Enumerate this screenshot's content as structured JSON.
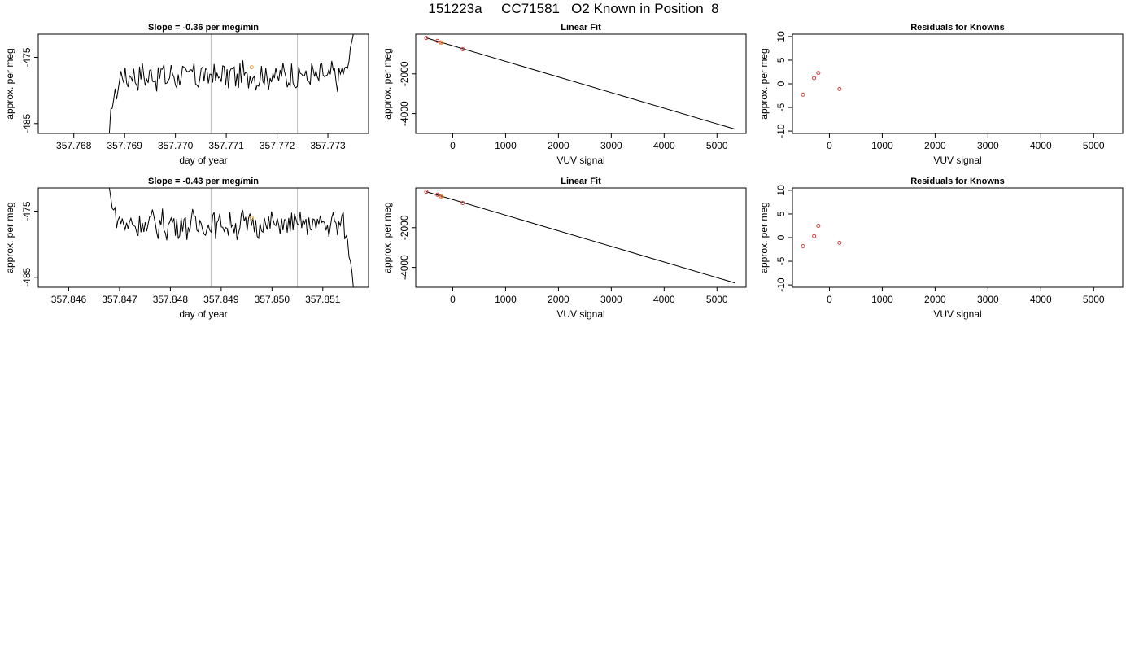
{
  "page": {
    "title": "151223a     CC71581   O2 Known in Position  8"
  },
  "colors": {
    "line": "#000000",
    "frame": "#000000",
    "vline": "#bebebe",
    "point_red": "#d43b3b",
    "point_orange": "#f2a13a"
  },
  "chart_data": [
    {
      "id": "p1",
      "type": "line",
      "title": "Slope =  -0.36  per meg/min",
      "xlabel": "day of year",
      "ylabel": "approx. per meg",
      "xlim": [
        357.7673,
        357.7738
      ],
      "ylim": [
        -486.5,
        -471.5
      ],
      "xticks": [
        357.768,
        357.769,
        357.77,
        357.771,
        357.772,
        357.773
      ],
      "xtick_labels": [
        "357.768",
        "357.769",
        "357.770",
        "357.771",
        "357.772",
        "357.773"
      ],
      "yticks": [
        -485,
        -475
      ],
      "ytick_labels": [
        "-485",
        "-475"
      ],
      "vlines": [
        357.7707,
        357.7724
      ],
      "t_start": 357.7687,
      "t_end": 357.7735,
      "level": -477.8,
      "start_value": -486.5,
      "end_value": -471.5,
      "marker": {
        "x": 357.7715,
        "y": -476.5
      }
    },
    {
      "id": "p2",
      "type": "scatter",
      "title": "Linear Fit",
      "xlabel": "VUV signal",
      "ylabel": "approx. per meg",
      "xlim": [
        -700,
        5550
      ],
      "ylim": [
        -5000,
        0
      ],
      "xticks": [
        0,
        1000,
        2000,
        3000,
        4000,
        5000
      ],
      "xtick_labels": [
        "0",
        "1000",
        "2000",
        "3000",
        "4000",
        "5000"
      ],
      "yticks": [
        -4000,
        -2000
      ],
      "ytick_labels": [
        "-4000",
        "-2000"
      ],
      "fit_line": [
        [
          -500,
          -190
        ],
        [
          5350,
          -4790
        ]
      ],
      "points": [
        {
          "x": -500,
          "y": -190,
          "color": "red"
        },
        {
          "x": -290,
          "y": -340,
          "color": "red"
        },
        {
          "x": -230,
          "y": -420,
          "color": "red"
        },
        {
          "x": -210,
          "y": -430,
          "color": "orange"
        },
        {
          "x": 190,
          "y": -760,
          "color": "red"
        }
      ]
    },
    {
      "id": "p3",
      "type": "scatter",
      "title": "Residuals for Knowns",
      "xlabel": "VUV signal",
      "ylabel": "approx. per meg",
      "xlim": [
        -700,
        5550
      ],
      "ylim": [
        -10.5,
        10.5
      ],
      "xticks": [
        0,
        1000,
        2000,
        3000,
        4000,
        5000
      ],
      "xtick_labels": [
        "0",
        "1000",
        "2000",
        "3000",
        "4000",
        "5000"
      ],
      "yticks": [
        -10,
        -5,
        0,
        5,
        10
      ],
      "ytick_labels": [
        "-10",
        "-5",
        "0",
        "5",
        "10"
      ],
      "points": [
        {
          "x": -500,
          "y": -2.3,
          "color": "red"
        },
        {
          "x": -290,
          "y": 1.2,
          "color": "red"
        },
        {
          "x": -210,
          "y": 2.3,
          "color": "red"
        },
        {
          "x": 190,
          "y": -1.1,
          "color": "red"
        }
      ]
    },
    {
      "id": "p4",
      "type": "line",
      "title": "Slope =  -0.43  per meg/min",
      "xlabel": "day of year",
      "ylabel": "approx. per meg",
      "xlim": [
        357.8454,
        357.8519
      ],
      "ylim": [
        -486.5,
        -471.5
      ],
      "xticks": [
        357.846,
        357.847,
        357.848,
        357.849,
        357.85,
        357.851
      ],
      "xtick_labels": [
        "357.846",
        "357.847",
        "357.848",
        "357.849",
        "357.850",
        "357.851"
      ],
      "yticks": [
        -485,
        -475
      ],
      "ytick_labels": [
        "-485",
        "-475"
      ],
      "vlines": [
        357.8488,
        357.8505
      ],
      "t_start": 357.8468,
      "t_end": 357.8516,
      "level": -477.0,
      "start_value": -471.5,
      "end_value": -486.5,
      "marker": {
        "x": 357.8496,
        "y": -476.0
      }
    },
    {
      "id": "p5",
      "type": "scatter",
      "title": "Linear Fit",
      "xlabel": "VUV signal",
      "ylabel": "approx. per meg",
      "xlim": [
        -700,
        5550
      ],
      "ylim": [
        -5000,
        0
      ],
      "xticks": [
        0,
        1000,
        2000,
        3000,
        4000,
        5000
      ],
      "xtick_labels": [
        "0",
        "1000",
        "2000",
        "3000",
        "4000",
        "5000"
      ],
      "yticks": [
        -4000,
        -2000
      ],
      "ytick_labels": [
        "-4000",
        "-2000"
      ],
      "fit_line": [
        [
          -500,
          -190
        ],
        [
          5350,
          -4790
        ]
      ],
      "points": [
        {
          "x": -500,
          "y": -190,
          "color": "red"
        },
        {
          "x": -290,
          "y": -340,
          "color": "red"
        },
        {
          "x": -230,
          "y": -420,
          "color": "red"
        },
        {
          "x": -210,
          "y": -430,
          "color": "orange"
        },
        {
          "x": 190,
          "y": -760,
          "color": "red"
        }
      ]
    },
    {
      "id": "p6",
      "type": "scatter",
      "title": "Residuals for Knowns",
      "xlabel": "VUV signal",
      "ylabel": "approx. per meg",
      "xlim": [
        -700,
        5550
      ],
      "ylim": [
        -10.5,
        10.5
      ],
      "xticks": [
        0,
        1000,
        2000,
        3000,
        4000,
        5000
      ],
      "xtick_labels": [
        "0",
        "1000",
        "2000",
        "3000",
        "4000",
        "5000"
      ],
      "yticks": [
        -10,
        -5,
        0,
        5,
        10
      ],
      "ytick_labels": [
        "-10",
        "-5",
        "0",
        "5",
        "10"
      ],
      "points": [
        {
          "x": -500,
          "y": -1.8,
          "color": "red"
        },
        {
          "x": -290,
          "y": 0.3,
          "color": "red"
        },
        {
          "x": -210,
          "y": 2.5,
          "color": "red"
        },
        {
          "x": 190,
          "y": -1.1,
          "color": "red"
        }
      ]
    }
  ]
}
